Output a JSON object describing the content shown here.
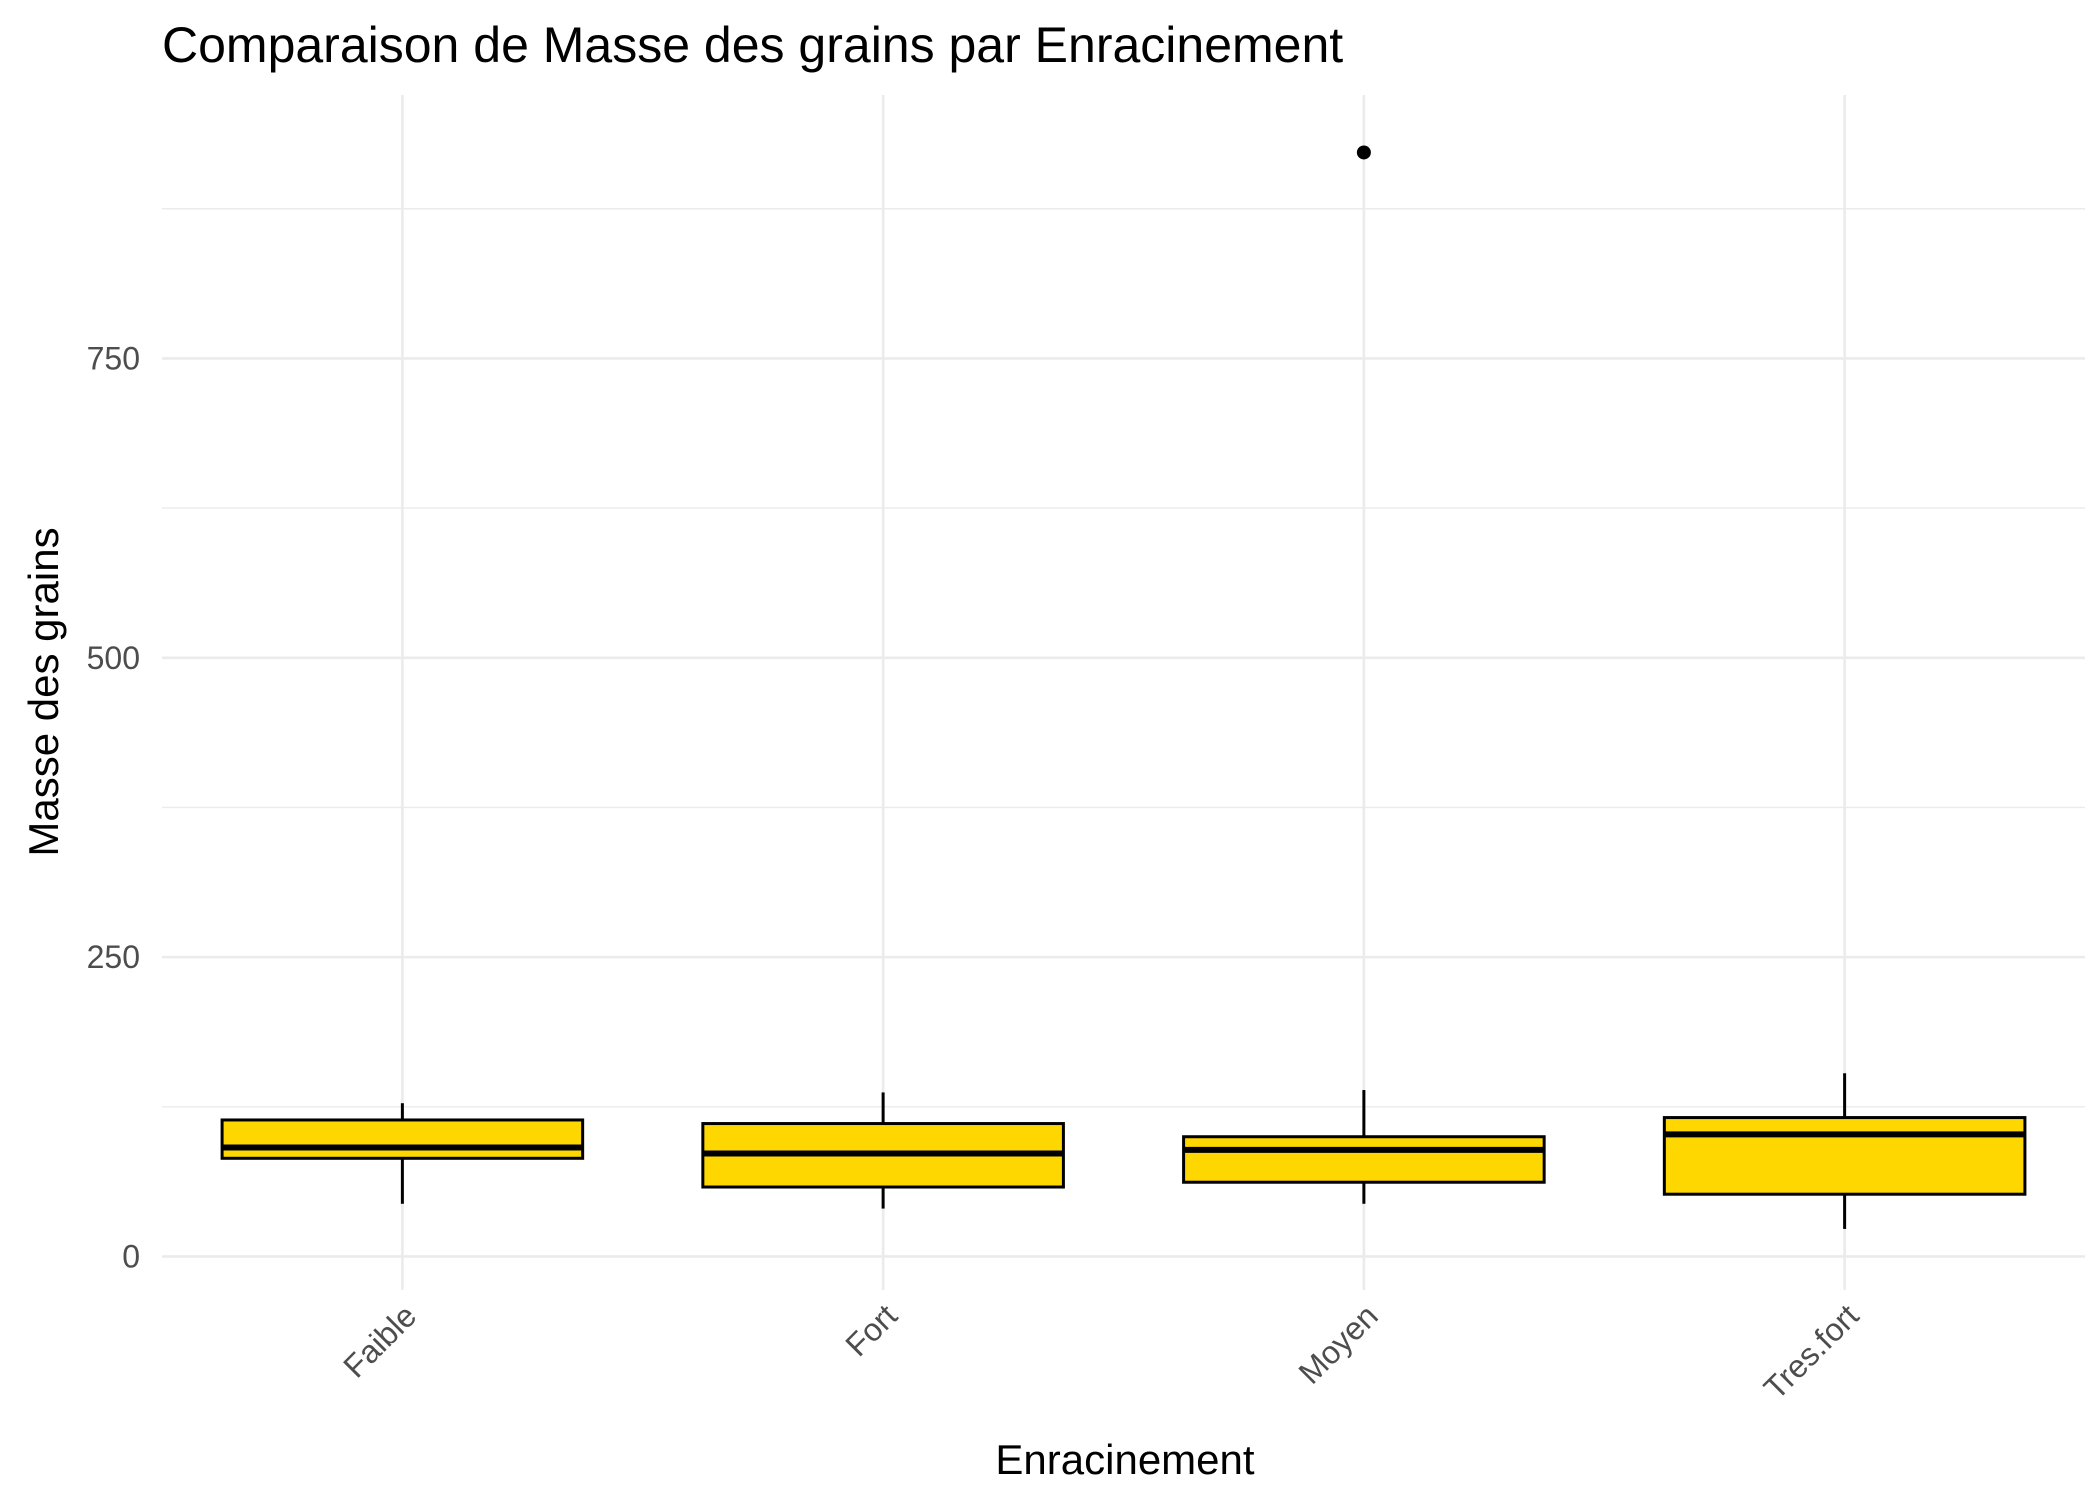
{
  "chart_data": {
    "type": "boxplot",
    "title": "Comparaison de Masse des grains par Enracinement",
    "xlabel": "Enracinement",
    "ylabel": "Masse des grains",
    "categories": [
      "Faible",
      "Fort",
      "Moyen",
      "Tres.fort"
    ],
    "y_ticks": [
      "0",
      "250",
      "500",
      "750"
    ],
    "y_tick_values": [
      0,
      250,
      500,
      750
    ],
    "ylim": [
      -28,
      970
    ],
    "grid": true,
    "fill_color": "#FFD700",
    "boxes": [
      {
        "category": "Faible",
        "whisker_low": 44,
        "q1": 82,
        "median": 91,
        "q3": 114,
        "whisker_high": 128,
        "outliers": []
      },
      {
        "category": "Fort",
        "whisker_low": 40,
        "q1": 58,
        "median": 86,
        "q3": 111,
        "whisker_high": 137,
        "outliers": []
      },
      {
        "category": "Moyen",
        "whisker_low": 44,
        "q1": 62,
        "median": 89,
        "q3": 100,
        "whisker_high": 139,
        "outliers": [
          922
        ]
      },
      {
        "category": "Tres.fort",
        "whisker_low": 23,
        "q1": 52,
        "median": 102,
        "q3": 116,
        "whisker_high": 153,
        "outliers": []
      }
    ]
  }
}
